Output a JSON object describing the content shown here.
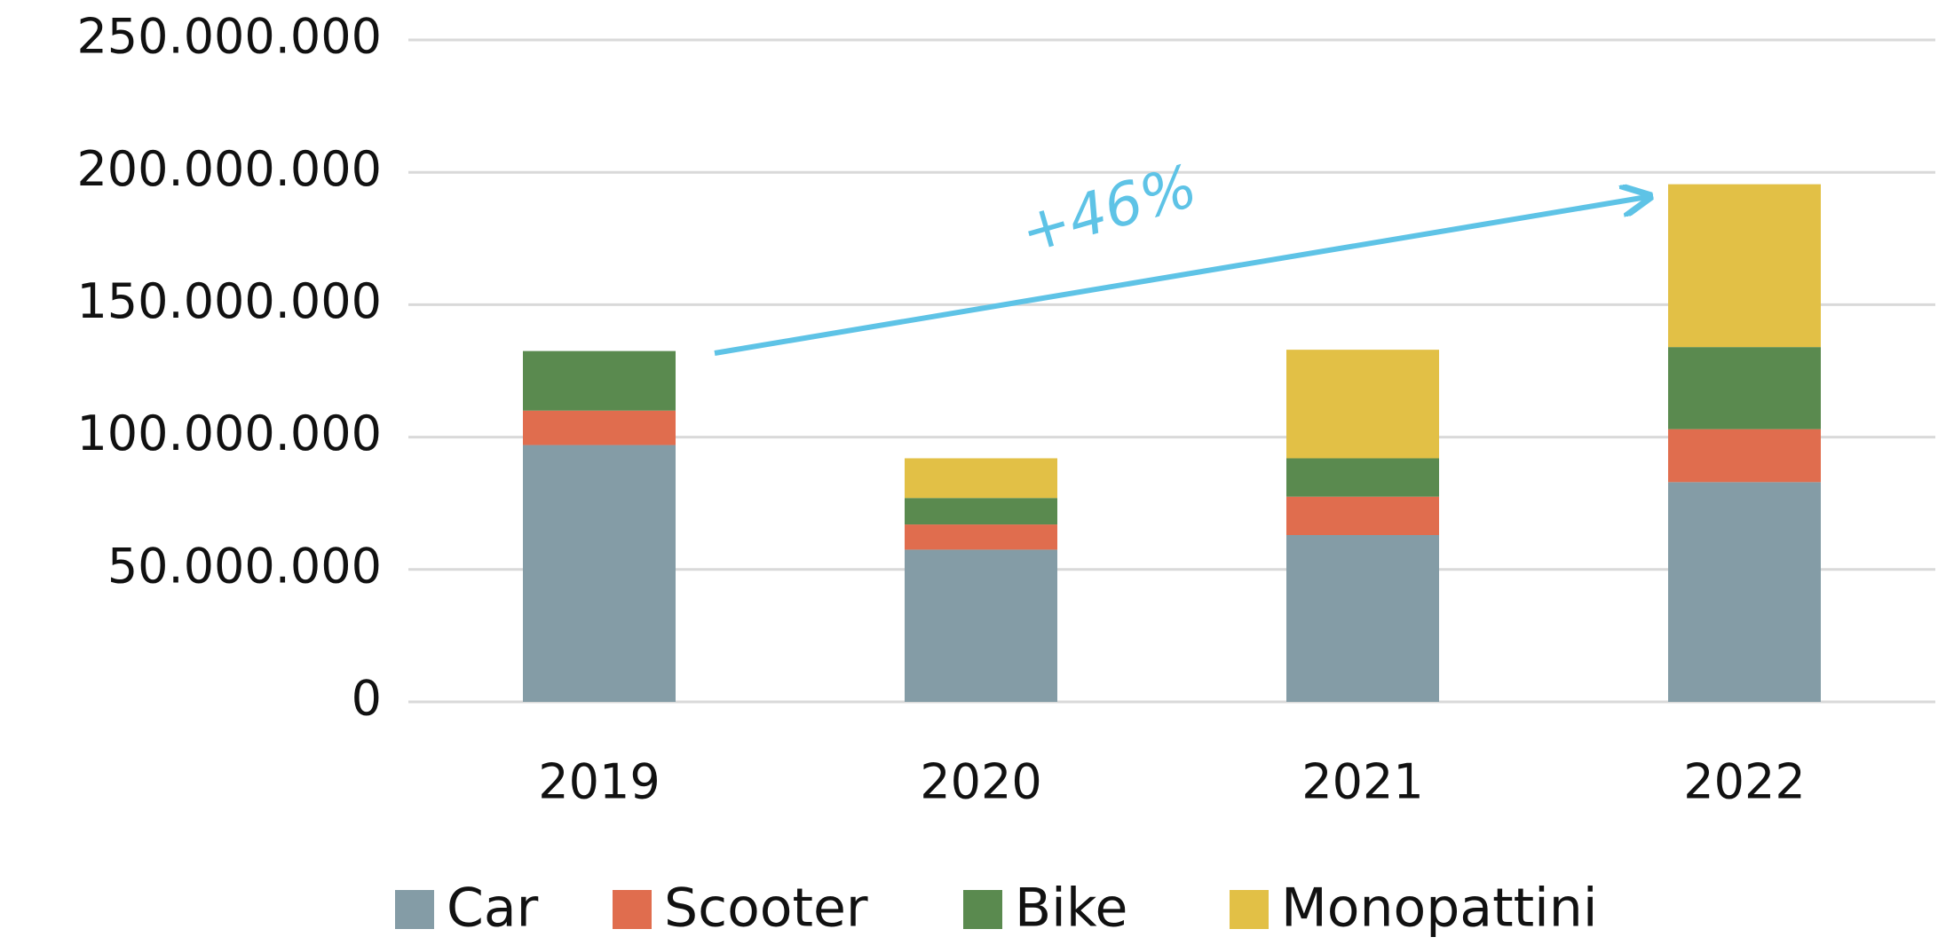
{
  "chart_data": {
    "type": "stacked_bar",
    "categories": [
      "2019",
      "2020",
      "2021",
      "2022"
    ],
    "series": [
      {
        "name": "Car",
        "color": "#849ca6",
        "values": [
          97000000,
          57500000,
          63000000,
          83000000
        ]
      },
      {
        "name": "Scooter",
        "color": "#e06d4e",
        "values": [
          13000000,
          9500000,
          14500000,
          20000000
        ]
      },
      {
        "name": "Bike",
        "color": "#5a8a4f",
        "values": [
          22500000,
          10000000,
          14500000,
          31000000
        ]
      },
      {
        "name": "Monopattini",
        "color": "#e2c046",
        "values": [
          0,
          15000000,
          41000000,
          61500000
        ]
      }
    ],
    "ylim": [
      0,
      250000000
    ],
    "yticks": [
      0,
      {
        "value": 50000000,
        "label": "50.000.000"
      },
      {
        "value": 100000000,
        "label": "100.000.000"
      },
      {
        "value": 150000000,
        "label": "150.000.000"
      },
      {
        "value": 200000000,
        "label": "200.000.000"
      },
      {
        "value": 250000000,
        "label": "250.000.000"
      }
    ],
    "grid": true,
    "legend": "bottom",
    "annotation": "+46%"
  }
}
